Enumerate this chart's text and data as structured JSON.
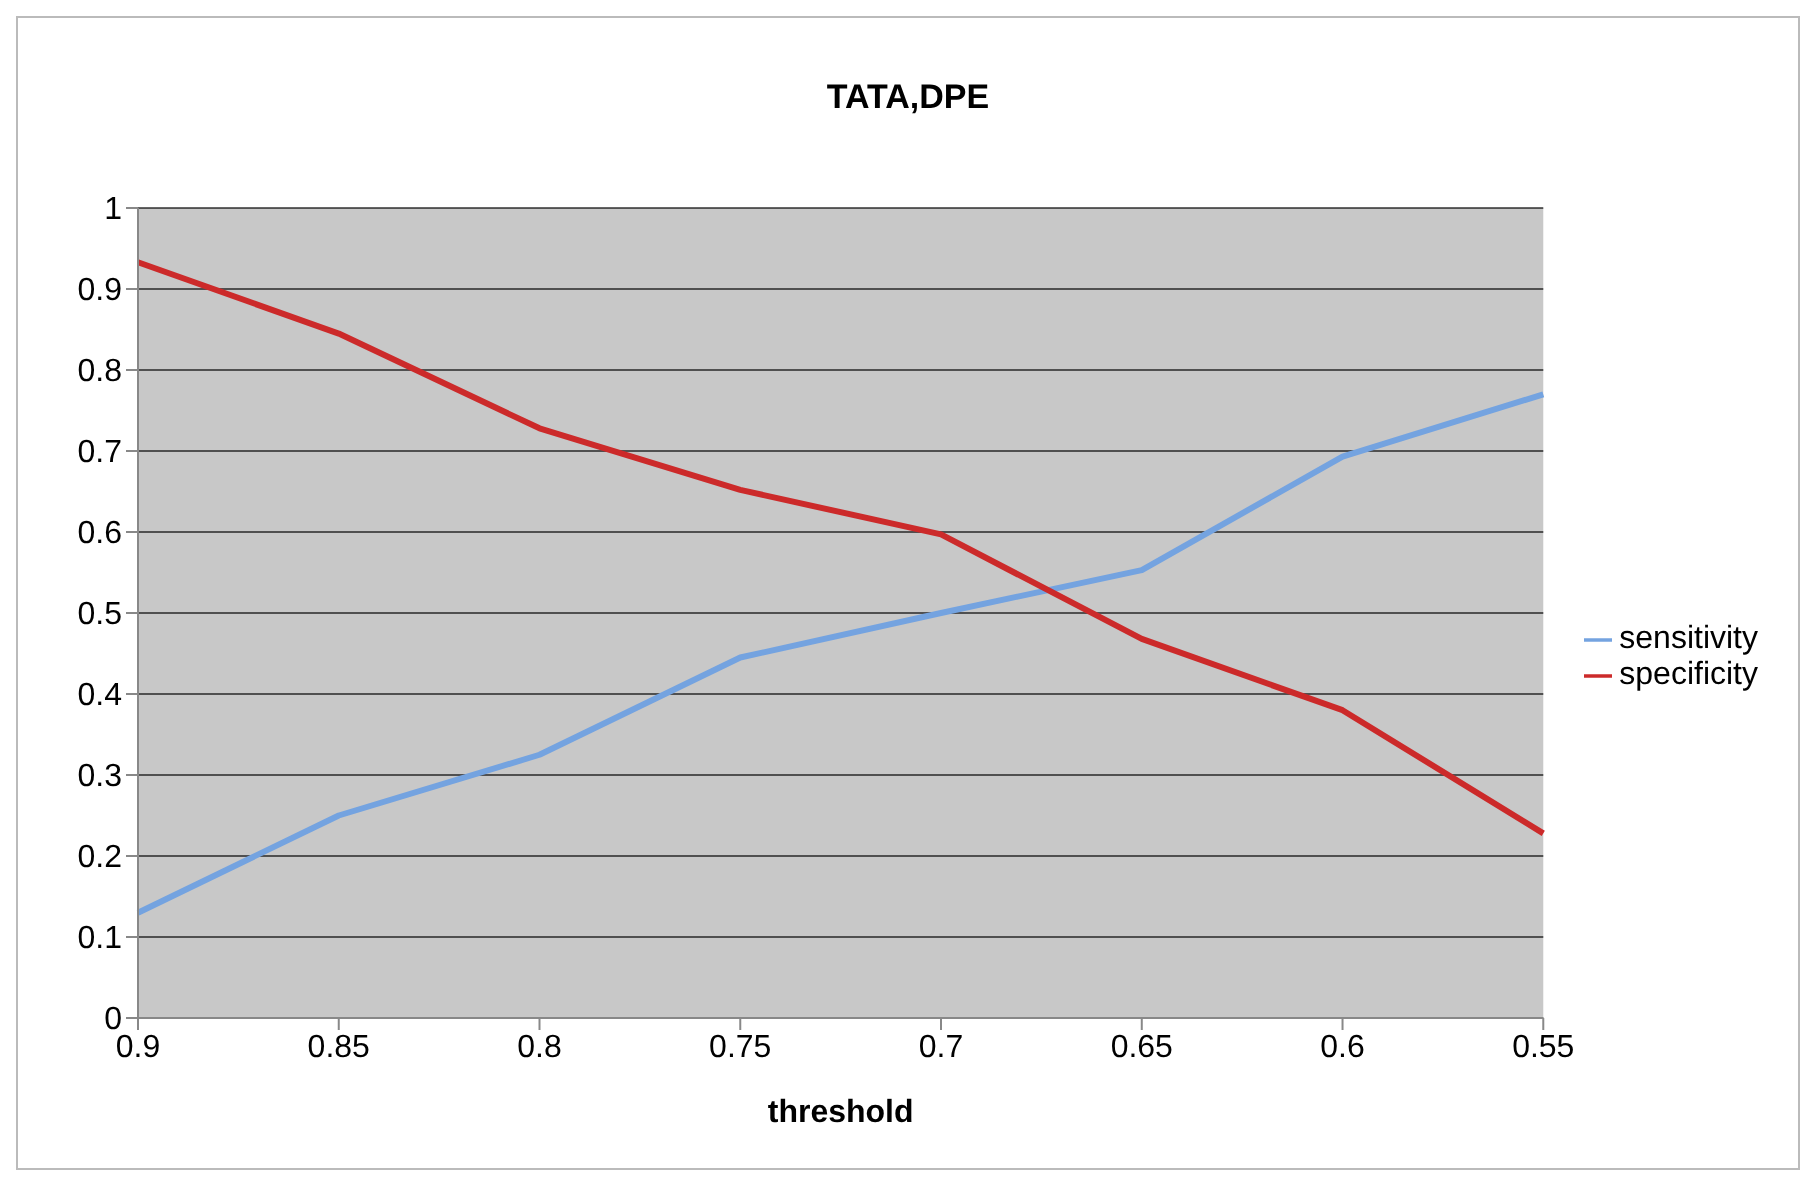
{
  "chart_data": {
    "type": "line",
    "title": "TATA,DPE",
    "xlabel": "threshold",
    "categories": [
      "0.9",
      "0.85",
      "0.8",
      "0.75",
      "0.7",
      "0.65",
      "0.6",
      "0.55"
    ],
    "series": [
      {
        "name": "sensitivity",
        "color": "#74a3e0",
        "values": [
          0.13,
          0.25,
          0.325,
          0.445,
          0.5,
          0.553,
          0.693,
          0.77
        ]
      },
      {
        "name": "specificity",
        "color": "#cc2a2a",
        "values": [
          0.933,
          0.845,
          0.728,
          0.652,
          0.597,
          0.468,
          0.38,
          0.228
        ]
      }
    ],
    "ylim": [
      0,
      1
    ],
    "yticks": [
      0,
      0.1,
      0.2,
      0.3,
      0.4,
      0.5,
      0.6,
      0.7,
      0.8,
      0.9,
      1
    ],
    "grid": "y",
    "legend": "right",
    "marker": "none",
    "line_style": "solid"
  }
}
